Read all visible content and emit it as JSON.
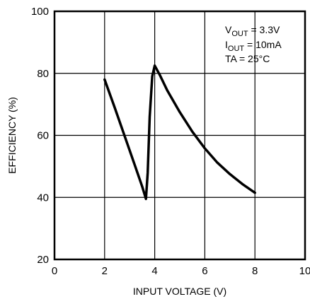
{
  "chart_data": {
    "type": "line",
    "xlabel": "INPUT VOLTAGE (V)",
    "ylabel": "EFFICIENCY (%)",
    "xlim": [
      0,
      10
    ],
    "ylim": [
      20,
      100
    ],
    "x_ticks": [
      0,
      2,
      4,
      6,
      8,
      10
    ],
    "y_ticks": [
      20,
      40,
      60,
      80,
      100
    ],
    "grid": true,
    "annotations": [
      {
        "base": "V",
        "sub": "OUT",
        "rest": " = 3.3V"
      },
      {
        "base": "I",
        "sub": "OUT",
        "rest": " = 10mA"
      },
      {
        "base": "TA = 25°C",
        "sub": "",
        "rest": ""
      }
    ],
    "series": [
      {
        "x": [
          2.0,
          2.4,
          2.8,
          3.2,
          3.5,
          3.65,
          3.72,
          3.8,
          3.9,
          4.0,
          4.2,
          4.5,
          5.0,
          5.5,
          6.0,
          6.5,
          7.0,
          7.5,
          8.0
        ],
        "y": [
          78.0,
          69.0,
          59.8,
          50.5,
          43.5,
          39.5,
          48.0,
          66.0,
          79.0,
          82.5,
          79.5,
          74.5,
          67.5,
          61.2,
          55.8,
          51.2,
          47.5,
          44.3,
          41.5
        ]
      }
    ]
  }
}
